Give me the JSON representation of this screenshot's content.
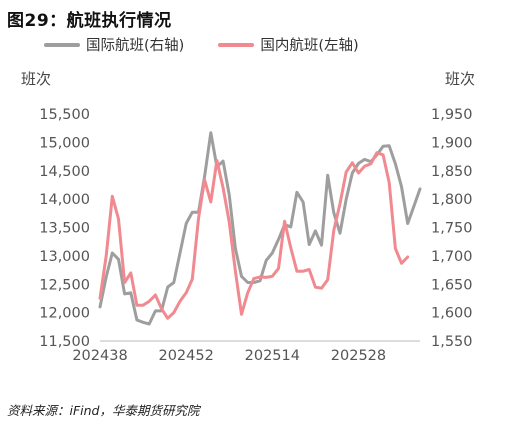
{
  "figure_title": "图29：航班执行情况",
  "source_note": "资料来源：iFind，华泰期货研究院",
  "chart_data": {
    "type": "line",
    "title": "",
    "left_axis_label": "班次",
    "right_axis_label": "班次",
    "left_ticks": [
      "15,500",
      "15,000",
      "14,500",
      "14,000",
      "13,500",
      "13,000",
      "12,500",
      "12,000",
      "11,500"
    ],
    "right_ticks": [
      "1,950",
      "1,900",
      "1,850",
      "1,800",
      "1,750",
      "1,700",
      "1,650",
      "1,600",
      "1,550"
    ],
    "x_tick_labels": [
      "202438",
      "202452",
      "202514",
      "202528"
    ],
    "left_ylim": [
      11500,
      15500
    ],
    "right_ylim": [
      1550,
      1950
    ],
    "grid": false,
    "legend_position": "top",
    "series": [
      {
        "name": "国际航班(右轴)",
        "axis": "right",
        "color": "#9e9e9e",
        "values": [
          1610,
          1663,
          1705,
          1694,
          1633,
          1635,
          1587,
          1583,
          1580,
          1603,
          1603,
          1645,
          1653,
          1705,
          1757,
          1777,
          1777,
          1840,
          1917,
          1857,
          1867,
          1808,
          1713,
          1664,
          1653,
          1653,
          1656,
          1692,
          1705,
          1729,
          1755,
          1751,
          1812,
          1795,
          1720,
          1744,
          1719,
          1842,
          1776,
          1740,
          1800,
          1846,
          1863,
          1870,
          1866,
          1878,
          1893,
          1894,
          1862,
          1822,
          1757,
          1787,
          1818
        ]
      },
      {
        "name": "国内航班(左轴)",
        "axis": "left",
        "color": "#f08a90",
        "values": [
          12250,
          13000,
          14050,
          13650,
          12530,
          12700,
          12130,
          12130,
          12200,
          12310,
          12070,
          11900,
          12000,
          12200,
          12350,
          12590,
          13660,
          14340,
          13950,
          14680,
          14200,
          13600,
          12730,
          11970,
          12350,
          12600,
          12630,
          12620,
          12640,
          12780,
          13610,
          13140,
          12730,
          12730,
          12760,
          12450,
          12430,
          12580,
          13450,
          13920,
          14480,
          14640,
          14460,
          14580,
          14620,
          14820,
          14780,
          14290,
          13130,
          12870,
          12980
        ]
      }
    ]
  }
}
